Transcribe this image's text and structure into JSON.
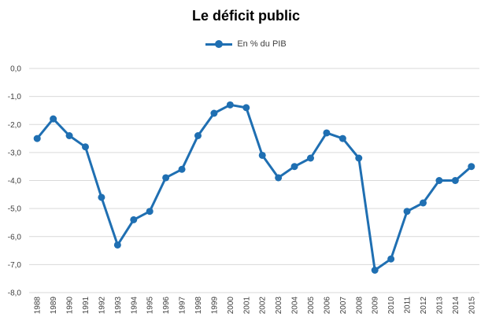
{
  "chart_data": {
    "type": "line",
    "title": "Le déficit public",
    "xlabel": "",
    "ylabel": "",
    "legend_position": "top",
    "grid": true,
    "ylim": [
      -8,
      0
    ],
    "yticks": [
      0,
      -1,
      -2,
      -3,
      -4,
      -5,
      -6,
      -7,
      -8
    ],
    "ytick_labels": [
      "0,0",
      "-1,0",
      "-2,0",
      "-3,0",
      "-4,0",
      "-5,0",
      "-6,0",
      "-7,0",
      "-8,0"
    ],
    "categories": [
      "1988",
      "1989",
      "1990",
      "1991",
      "1992",
      "1993",
      "1994",
      "1995",
      "1996",
      "1997",
      "1998",
      "1999",
      "2000",
      "2001",
      "2002",
      "2003",
      "2004",
      "2005",
      "2006",
      "2007",
      "2008",
      "2009",
      "2010",
      "2011",
      "2012",
      "2013",
      "2014",
      "2015"
    ],
    "series": [
      {
        "name": "En % du PIB",
        "color": "#1f6fb2",
        "values": [
          -2.5,
          -1.8,
          -2.4,
          -2.8,
          -4.6,
          -6.3,
          -5.4,
          -5.1,
          -3.9,
          -3.6,
          -2.4,
          -1.6,
          -1.3,
          -1.4,
          -3.1,
          -3.9,
          -3.5,
          -3.2,
          -2.3,
          -2.5,
          -3.2,
          -7.2,
          -6.8,
          -5.1,
          -4.8,
          -4.0,
          -4.0,
          -3.5
        ]
      }
    ]
  }
}
